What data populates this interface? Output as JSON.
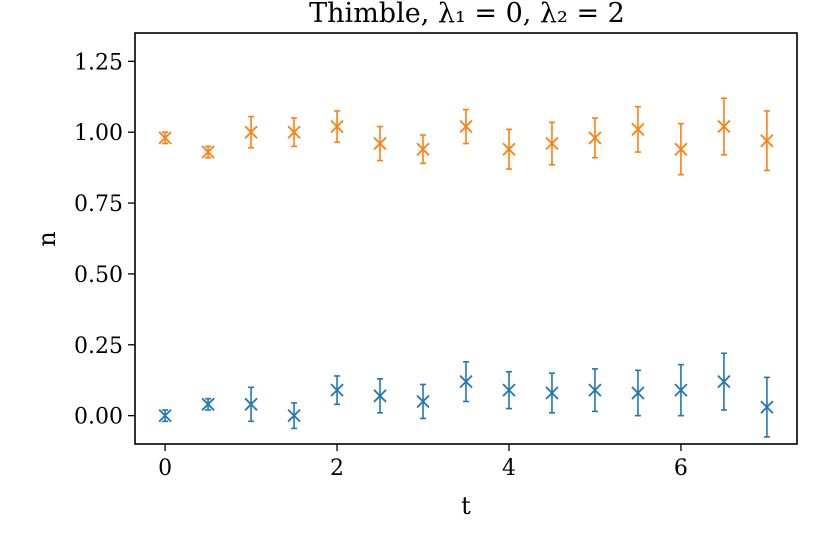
{
  "chart_data": {
    "type": "scatter",
    "title": "Thimble, λ₁ = 0, λ₂ = 2",
    "xlabel": "t",
    "ylabel": "n",
    "xlim": [
      -0.35,
      7.35
    ],
    "ylim": [
      -0.1,
      1.35
    ],
    "xticks": [
      "0",
      "2",
      "4",
      "6"
    ],
    "yticks": [
      "0.00",
      "0.25",
      "0.50",
      "0.75",
      "1.00",
      "1.25"
    ],
    "grid": false,
    "marker": "x",
    "error_bars": true,
    "series": [
      {
        "color": "#1f77b4",
        "x": [
          0,
          0.5,
          1,
          1.5,
          2,
          2.5,
          3,
          3.5,
          4,
          4.5,
          5,
          5.5,
          6,
          6.5,
          7
        ],
        "y": [
          0.0,
          0.04,
          0.04,
          0.0,
          0.09,
          0.07,
          0.05,
          0.12,
          0.09,
          0.08,
          0.09,
          0.08,
          0.09,
          0.12,
          0.03
        ],
        "yerr": [
          0.02,
          0.02,
          0.06,
          0.045,
          0.05,
          0.06,
          0.06,
          0.07,
          0.065,
          0.07,
          0.075,
          0.08,
          0.09,
          0.1,
          0.105
        ]
      },
      {
        "color": "#ff7f0e",
        "x": [
          0,
          0.5,
          1,
          1.5,
          2,
          2.5,
          3,
          3.5,
          4,
          4.5,
          5,
          5.5,
          6,
          6.5,
          7
        ],
        "y": [
          0.98,
          0.93,
          1.0,
          1.0,
          1.02,
          0.96,
          0.94,
          1.02,
          0.94,
          0.96,
          0.98,
          1.01,
          0.94,
          1.02,
          0.97
        ],
        "yerr": [
          0.02,
          0.02,
          0.055,
          0.05,
          0.055,
          0.06,
          0.05,
          0.06,
          0.07,
          0.075,
          0.07,
          0.08,
          0.09,
          0.1,
          0.105
        ]
      }
    ]
  }
}
